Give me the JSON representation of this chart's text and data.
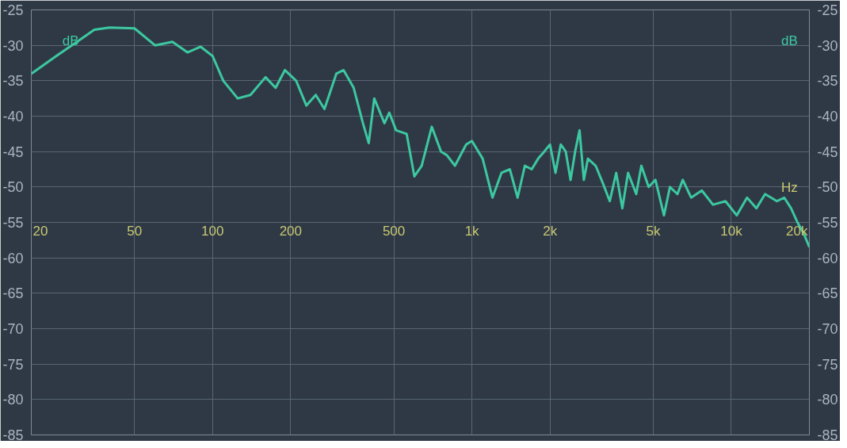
{
  "chart_data": {
    "type": "line",
    "ylabel": "dB",
    "y2label": "dB",
    "xlabel": "Hz",
    "log": "x",
    "xlim": [
      20,
      20000
    ],
    "xticks": [
      20,
      50,
      100,
      200,
      500,
      {
        "value": 1000,
        "label": "1k"
      },
      {
        "value": 2000,
        "label": "2k"
      },
      {
        "value": 5000,
        "label": "5k"
      },
      {
        "value": 10000,
        "label": "10k"
      },
      {
        "value": 20000,
        "label": "20k"
      }
    ],
    "ylim": [
      -85,
      -25
    ],
    "yticks": [
      -85,
      -80,
      -75,
      -70,
      -65,
      -60,
      -55,
      -50,
      -45,
      -40,
      -35,
      -30,
      -25
    ],
    "y2lim": [
      -85,
      -25
    ],
    "y2ticks": [
      -85,
      -80,
      -75,
      -70,
      -65,
      -60,
      -55,
      -50,
      -45,
      -40,
      -35,
      -30,
      -25
    ],
    "grid": true,
    "marker": "none",
    "line_style": "solid",
    "x": [
      20,
      25,
      30,
      35,
      40,
      50,
      60,
      70,
      80,
      90,
      100,
      110,
      125,
      140,
      160,
      175,
      190,
      210,
      230,
      250,
      270,
      300,
      320,
      350,
      380,
      400,
      420,
      460,
      480,
      510,
      560,
      600,
      640,
      700,
      760,
      800,
      860,
      950,
      1000,
      1100,
      1200,
      1300,
      1400,
      1500,
      1600,
      1700,
      1800,
      1900,
      2000,
      2100,
      2200,
      2300,
      2400,
      2500,
      2600,
      2700,
      2800,
      3000,
      3200,
      3400,
      3600,
      3800,
      4000,
      4300,
      4500,
      4800,
      5100,
      5500,
      5800,
      6200,
      6500,
      7000,
      7700,
      8500,
      9500,
      10500,
      11500,
      12500,
      13500,
      15000,
      16000,
      17000,
      18000,
      19000,
      20000
    ],
    "series": [
      {
        "color": "#3cc8a0",
        "values": [
          -34,
          -31.5,
          -29.5,
          -27.8,
          -27.5,
          -27.6,
          -30,
          -29.5,
          -31,
          -30.2,
          -31.5,
          -35,
          -37.5,
          -37,
          -34.5,
          -36,
          -33.5,
          -35,
          -38.5,
          -37,
          -39,
          -34,
          -33.5,
          -36,
          -41,
          -43.8,
          -37.5,
          -41,
          -39.5,
          -42,
          -42.5,
          -48.5,
          -47,
          -41.5,
          -45,
          -45.5,
          -47,
          -44,
          -43.5,
          -46,
          -51.5,
          -48,
          -47.5,
          -51.5,
          -47,
          -47.5,
          -46,
          -45,
          -44,
          -48,
          -44,
          -45,
          -49,
          -45,
          -42,
          -49,
          -46,
          -47,
          -49.5,
          -52,
          -48,
          -53,
          -48,
          -51,
          -47,
          -50,
          -49,
          -54,
          -50,
          -51,
          -49,
          -51.5,
          -50.5,
          -52.5,
          -52,
          -54,
          -51.5,
          -53,
          -51,
          -52,
          -51.5,
          -53,
          -55,
          -56.5,
          -58.5
        ]
      }
    ]
  }
}
